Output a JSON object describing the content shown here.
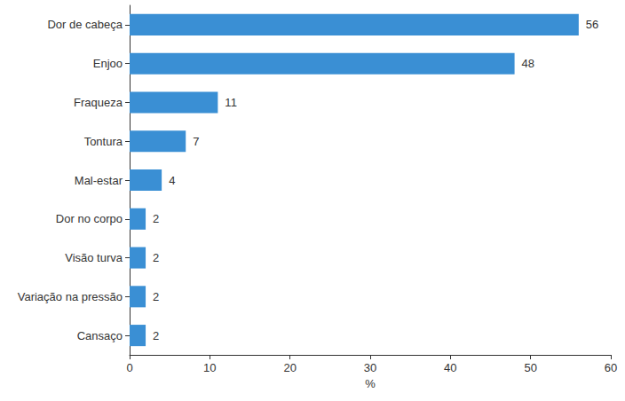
{
  "chart_data": {
    "type": "bar",
    "orientation": "horizontal",
    "categories": [
      "Dor de cabeça",
      "Enjoo",
      "Fraqueza",
      "Tontura",
      "Mal-estar",
      "Dor no corpo",
      "Visão turva",
      "Variação na pressão",
      "Cansaço"
    ],
    "values": [
      56,
      48,
      11,
      7,
      4,
      2,
      2,
      2,
      2
    ],
    "color": "#3a8fd4",
    "x_label": "%",
    "xlim": [
      0,
      60
    ],
    "xticks": [
      0,
      10,
      20,
      30,
      40,
      50,
      60
    ],
    "grid": false,
    "data_labels": true
  }
}
